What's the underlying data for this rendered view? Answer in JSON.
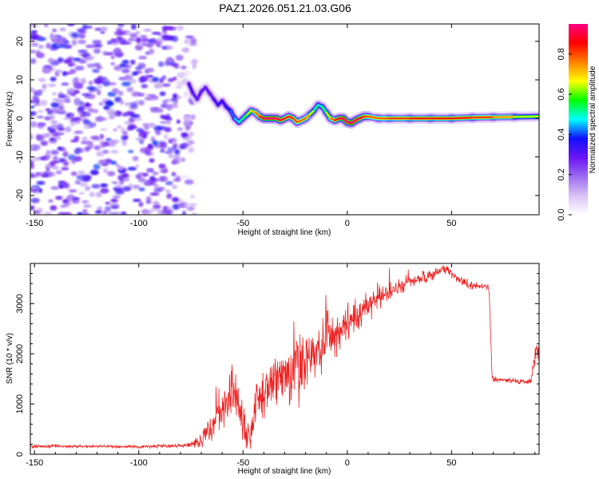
{
  "title": "PAZ1.2026.051.21.03.G06",
  "chart_data": [
    {
      "type": "heatmap",
      "name": "spectrogram",
      "xlabel": "Height of straight line (km)",
      "ylabel": "Frequency (Hz)",
      "xlim": [
        -152,
        92
      ],
      "ylim": [
        -25,
        24.5
      ],
      "xticks": [
        -150,
        -100,
        -50,
        0,
        50
      ],
      "yticks": [
        -20,
        -10,
        0,
        10,
        20
      ],
      "colorbar": {
        "label": "Normalized spectral amplitude",
        "range": [
          0,
          0.95
        ],
        "ticks": [
          "0.0",
          "0.2",
          "0.4",
          "0.6",
          "0.8"
        ],
        "colors": [
          "#ffffff",
          "#d9c2f5",
          "#9b6cf0",
          "#6a14f5",
          "#1010ff",
          "#00ffff",
          "#00ff00",
          "#ffff00",
          "#ff8000",
          "#ff0000",
          "#ff0080"
        ]
      },
      "noise_region_x": [
        -152,
        -73
      ],
      "ridge": {
        "x": [
          -76,
          -74,
          -72,
          -70,
          -68,
          -66,
          -64,
          -62,
          -60,
          -58,
          -56,
          -54,
          -52,
          -50,
          -48,
          -46,
          -44,
          -42,
          -40,
          -38,
          -36,
          -34,
          -32,
          -30,
          -28,
          -26,
          -24,
          -22,
          -20,
          -18,
          -16,
          -14,
          -12,
          -10,
          -8,
          -6,
          -4,
          -2,
          0,
          2,
          4,
          6,
          8,
          10,
          15,
          20,
          30,
          40,
          50,
          60,
          70,
          80,
          92
        ],
        "y": [
          9,
          6.5,
          5,
          7,
          8,
          6.5,
          5,
          3.5,
          4.5,
          3,
          2,
          0,
          -1,
          0,
          1,
          2,
          1.5,
          0.5,
          0,
          0,
          0,
          0,
          -0.5,
          0,
          0.5,
          0,
          -1,
          -0.5,
          0,
          1,
          2,
          3.5,
          3,
          1.5,
          0,
          -0.5,
          0,
          0,
          -1,
          -1.2,
          -0.5,
          0,
          0.5,
          0.5,
          0,
          0,
          0,
          0,
          0,
          0.2,
          0.3,
          0.4,
          0.5
        ],
        "amplitude": [
          0.35,
          0.3,
          0.3,
          0.3,
          0.3,
          0.3,
          0.3,
          0.35,
          0.35,
          0.35,
          0.4,
          0.45,
          0.5,
          0.55,
          0.6,
          0.7,
          0.75,
          0.85,
          0.95,
          0.95,
          0.95,
          0.95,
          0.9,
          0.85,
          0.85,
          0.85,
          0.8,
          0.8,
          0.8,
          0.75,
          0.6,
          0.5,
          0.5,
          0.6,
          0.75,
          0.85,
          0.9,
          0.95,
          0.95,
          0.95,
          0.95,
          0.9,
          0.85,
          0.8,
          0.8,
          0.8,
          0.85,
          0.85,
          0.85,
          0.85,
          0.8,
          0.7,
          0.6
        ]
      }
    },
    {
      "type": "line",
      "name": "snr",
      "xlabel": "Height of straight line (km)",
      "ylabel": "SNR (10 * v/v)",
      "xlim": [
        -152,
        92
      ],
      "ylim": [
        0,
        3800
      ],
      "xticks": [
        -150,
        -100,
        -50,
        0,
        50
      ],
      "yticks": [
        0,
        1000,
        2000,
        3000
      ],
      "color": "#ee2222",
      "series": [
        {
          "name": "SNR",
          "x": [
            -152,
            -140,
            -130,
            -120,
            -110,
            -100,
            -90,
            -80,
            -75,
            -70,
            -66,
            -62,
            -58,
            -55,
            -52,
            -49,
            -46,
            -44,
            -40,
            -36,
            -32,
            -28,
            -24,
            -20,
            -16,
            -12,
            -10,
            -8,
            -4,
            0,
            4,
            8,
            12,
            16,
            20,
            24,
            28,
            32,
            36,
            40,
            44,
            46,
            48,
            50,
            54,
            58,
            62,
            66,
            68,
            69.5,
            72,
            76,
            80,
            84,
            88,
            90,
            92
          ],
          "y": [
            150,
            160,
            155,
            160,
            150,
            155,
            160,
            170,
            190,
            280,
            450,
            800,
            1000,
            1350,
            900,
            450,
            380,
            1100,
            1200,
            1450,
            1500,
            1550,
            1700,
            1850,
            2000,
            2150,
            2600,
            2300,
            2450,
            2600,
            2750,
            2900,
            3000,
            3150,
            3250,
            3300,
            3400,
            3450,
            3500,
            3550,
            3650,
            3720,
            3680,
            3600,
            3450,
            3380,
            3350,
            3330,
            3320,
            1520,
            1480,
            1470,
            1460,
            1450,
            1430,
            1900,
            2100
          ],
          "noise_amplitude": [
            55,
            35,
            35,
            35,
            35,
            35,
            35,
            45,
            60,
            200,
            300,
            450,
            500,
            550,
            500,
            350,
            300,
            600,
            650,
            650,
            700,
            700,
            700,
            650,
            650,
            600,
            800,
            600,
            550,
            450,
            400,
            350,
            320,
            280,
            220,
            200,
            180,
            160,
            150,
            150,
            120,
            100,
            110,
            120,
            120,
            110,
            100,
            100,
            100,
            60,
            60,
            60,
            60,
            60,
            60,
            400,
            350
          ]
        }
      ]
    }
  ]
}
